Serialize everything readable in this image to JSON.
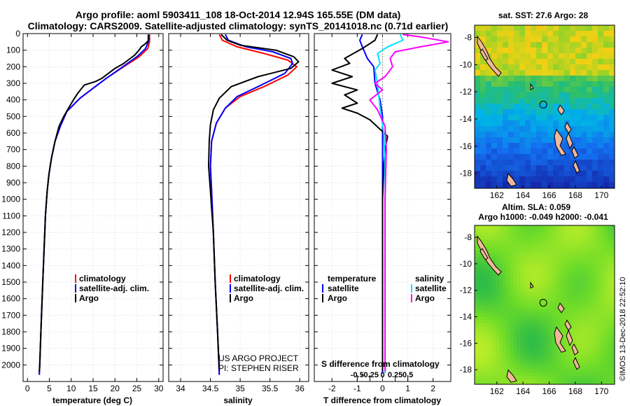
{
  "title": {
    "line1": "Argo profile: aoml 5903411_108 18-Oct-2014 12.94S 165.55E (DM data)",
    "line2": "Climatology: CARS2009. Satellite-adjusted climatology: synTS_20141018.nc (0.71d earlier)"
  },
  "colors": {
    "climatology": "#ff0000",
    "satellite": "#0000ff",
    "argo": "#000000",
    "sal_argo": "#ff00ff",
    "sal_satellite": "#00e5ff"
  },
  "chart_data": [
    {
      "type": "line",
      "id": "temperature",
      "xlabel": "temperature (deg C)",
      "ylabel": "",
      "xlim": [
        -1,
        31
      ],
      "ylim": [
        2100,
        0
      ],
      "xticks": [
        0,
        5,
        10,
        15,
        20,
        25,
        30
      ],
      "xticklabels": [
        "0",
        "5",
        "10",
        "15",
        "20",
        "25",
        "30"
      ],
      "yticks": [
        0,
        100,
        200,
        300,
        400,
        500,
        600,
        700,
        800,
        900,
        1000,
        1100,
        1200,
        1300,
        1400,
        1500,
        1600,
        1700,
        1800,
        1900,
        2000
      ],
      "legend": [
        "climatology",
        "satellite-adj. clim.",
        "Argo"
      ],
      "series": [
        {
          "name": "climatology",
          "color": "#ff0000",
          "points": [
            [
              27.9,
              5
            ],
            [
              27.9,
              50
            ],
            [
              27.5,
              90
            ],
            [
              25.5,
              140
            ],
            [
              22,
              200
            ],
            [
              18,
              270
            ],
            [
              15,
              330
            ],
            [
              12,
              390
            ],
            [
              9,
              470
            ],
            [
              7.5,
              560
            ],
            [
              6.3,
              650
            ],
            [
              5.5,
              750
            ],
            [
              4.9,
              850
            ],
            [
              4.5,
              950
            ],
            [
              4.1,
              1100
            ],
            [
              3.8,
              1300
            ],
            [
              3.5,
              1500
            ],
            [
              3.2,
              1700
            ],
            [
              3.0,
              1850
            ],
            [
              2.8,
              2000
            ],
            [
              2.7,
              2060
            ]
          ]
        },
        {
          "name": "satellite-adj. clim.",
          "color": "#0000ff",
          "points": [
            [
              27.6,
              5
            ],
            [
              27.6,
              50
            ],
            [
              27.0,
              90
            ],
            [
              25.0,
              140
            ],
            [
              21.8,
              200
            ],
            [
              18,
              270
            ],
            [
              15,
              330
            ],
            [
              12,
              390
            ],
            [
              9,
              470
            ],
            [
              7.5,
              560
            ],
            [
              6.3,
              650
            ],
            [
              5.5,
              750
            ],
            [
              4.9,
              850
            ],
            [
              4.5,
              950
            ],
            [
              4.1,
              1100
            ],
            [
              3.8,
              1300
            ],
            [
              3.5,
              1500
            ],
            [
              3.2,
              1700
            ],
            [
              3.0,
              1850
            ],
            [
              2.8,
              2000
            ],
            [
              2.7,
              2060
            ]
          ]
        },
        {
          "name": "Argo",
          "color": "#000000",
          "points": [
            [
              27.7,
              5
            ],
            [
              27.7,
              40
            ],
            [
              27.0,
              60
            ],
            [
              26.0,
              80
            ],
            [
              25.5,
              100
            ],
            [
              24.5,
              130
            ],
            [
              23.5,
              150
            ],
            [
              22,
              180
            ],
            [
              20,
              210
            ],
            [
              18.5,
              240
            ],
            [
              17,
              270
            ],
            [
              15.5,
              290
            ],
            [
              13,
              310
            ],
            [
              11.5,
              360
            ],
            [
              10.5,
              400
            ],
            [
              9.6,
              440
            ],
            [
              8.3,
              500
            ],
            [
              7.2,
              560
            ],
            [
              6.3,
              650
            ],
            [
              5.5,
              750
            ],
            [
              4.9,
              850
            ],
            [
              4.5,
              950
            ],
            [
              4.1,
              1100
            ],
            [
              3.8,
              1300
            ],
            [
              3.5,
              1500
            ],
            [
              3.2,
              1700
            ],
            [
              3.0,
              1850
            ],
            [
              2.8,
              2000
            ],
            [
              2.7,
              2040
            ]
          ]
        }
      ]
    },
    {
      "type": "line",
      "id": "salinity",
      "xlabel": "salinity",
      "xlim": [
        33.8,
        36.15
      ],
      "ylim": [
        2100,
        0
      ],
      "xticks": [
        34,
        34.5,
        35,
        35.5,
        36
      ],
      "xticklabels": [
        "34",
        "34.5",
        "35",
        "35.5",
        "36"
      ],
      "legend": [
        "climatology",
        "satellite-adj. clim.",
        "Argo"
      ],
      "annotations": [
        "US ARGO PROJECT",
        "PI: STEPHEN RISER"
      ],
      "series": [
        {
          "name": "climatology",
          "color": "#ff0000",
          "points": [
            [
              34.65,
              5
            ],
            [
              34.7,
              40
            ],
            [
              34.95,
              80
            ],
            [
              35.4,
              120
            ],
            [
              35.8,
              160
            ],
            [
              35.95,
              200
            ],
            [
              35.8,
              250
            ],
            [
              35.4,
              320
            ],
            [
              35.0,
              380
            ],
            [
              34.75,
              450
            ],
            [
              34.6,
              540
            ],
            [
              34.52,
              650
            ],
            [
              34.5,
              800
            ],
            [
              34.52,
              950
            ],
            [
              34.55,
              1200
            ],
            [
              34.58,
              1500
            ],
            [
              34.62,
              1800
            ],
            [
              34.65,
              2060
            ]
          ]
        },
        {
          "name": "satellite-adj. clim.",
          "color": "#0000ff",
          "points": [
            [
              34.75,
              5
            ],
            [
              34.8,
              40
            ],
            [
              35.1,
              80
            ],
            [
              35.55,
              110
            ],
            [
              35.85,
              150
            ],
            [
              35.88,
              180
            ],
            [
              35.75,
              240
            ],
            [
              35.3,
              320
            ],
            [
              34.95,
              380
            ],
            [
              34.75,
              450
            ],
            [
              34.6,
              540
            ],
            [
              34.52,
              650
            ],
            [
              34.5,
              800
            ],
            [
              34.52,
              950
            ],
            [
              34.55,
              1200
            ],
            [
              34.58,
              1500
            ],
            [
              34.62,
              1800
            ],
            [
              34.65,
              2060
            ]
          ]
        },
        {
          "name": "Argo",
          "color": "#000000",
          "points": [
            [
              34.68,
              5
            ],
            [
              34.78,
              40
            ],
            [
              35.0,
              70
            ],
            [
              35.6,
              100
            ],
            [
              35.9,
              140
            ],
            [
              35.98,
              170
            ],
            [
              35.85,
              210
            ],
            [
              35.3,
              260
            ],
            [
              34.85,
              320
            ],
            [
              34.65,
              390
            ],
            [
              34.55,
              460
            ],
            [
              34.5,
              550
            ],
            [
              34.48,
              650
            ],
            [
              34.47,
              800
            ],
            [
              34.5,
              950
            ],
            [
              34.55,
              1200
            ],
            [
              34.58,
              1500
            ],
            [
              34.62,
              1800
            ],
            [
              34.65,
              2030
            ]
          ]
        }
      ]
    },
    {
      "type": "line",
      "id": "differences",
      "xlabel": "T difference from climatology",
      "xlabel_top": "S difference from climatology",
      "xlim": [
        -2.7,
        2.7
      ],
      "ylim": [
        2100,
        0
      ],
      "xticks": [
        -2,
        -1,
        0,
        1,
        2
      ],
      "xticklabels": [
        "-2",
        "-1",
        "0",
        "1",
        "2"
      ],
      "sticks": [
        -1,
        -0.5,
        0,
        0.5,
        1
      ],
      "sticklabels": [
        "-0.5",
        "-0.25",
        "0",
        "0.25",
        "0.5"
      ],
      "legend_left_title": "temperature",
      "legend_right_title": "salinity",
      "legend": [
        "satellite",
        "Argo"
      ],
      "series": [
        {
          "name": "T satellite",
          "color": "#0000ff",
          "points": [
            [
              -0.8,
              5
            ],
            [
              -0.9,
              40
            ],
            [
              -0.8,
              80
            ],
            [
              -0.6,
              150
            ],
            [
              -0.35,
              200
            ],
            [
              -0.3,
              300
            ],
            [
              -0.1,
              400
            ],
            [
              0,
              500
            ],
            [
              0,
              700
            ],
            [
              0,
              2050
            ]
          ]
        },
        {
          "name": "T Argo",
          "color": "#000000",
          "points": [
            [
              -0.2,
              5
            ],
            [
              -0.3,
              40
            ],
            [
              -0.8,
              90
            ],
            [
              -1.5,
              150
            ],
            [
              -1.3,
              180
            ],
            [
              -2.0,
              220
            ],
            [
              -1.2,
              260
            ],
            [
              -2.0,
              300
            ],
            [
              -1.0,
              340
            ],
            [
              -1.5,
              370
            ],
            [
              -1.0,
              420
            ],
            [
              -1.6,
              450
            ],
            [
              -1.0,
              480
            ],
            [
              -0.5,
              520
            ],
            [
              0.2,
              620
            ],
            [
              0.1,
              700
            ],
            [
              0.05,
              800
            ],
            [
              0,
              1000
            ],
            [
              0,
              2040
            ]
          ]
        },
        {
          "name": "S satellite",
          "color": "#00e5ff",
          "points": [
            [
              0.7,
              5
            ],
            [
              0.8,
              40
            ],
            [
              0.2,
              80
            ],
            [
              -0.2,
              120
            ],
            [
              -0.1,
              180
            ],
            [
              -0.3,
              220
            ],
            [
              -0.2,
              300
            ],
            [
              -0.1,
              450
            ],
            [
              0.05,
              600
            ],
            [
              0.1,
              800
            ],
            [
              0.1,
              2050
            ]
          ]
        },
        {
          "name": "S Argo",
          "color": "#ff00ff",
          "points": [
            [
              0.8,
              5
            ],
            [
              1.5,
              20
            ],
            [
              2.6,
              50
            ],
            [
              1.5,
              80
            ],
            [
              0.5,
              110
            ],
            [
              0.3,
              150
            ],
            [
              0.4,
              200
            ],
            [
              0.1,
              260
            ],
            [
              -0.3,
              300
            ],
            [
              0.0,
              340
            ],
            [
              -0.5,
              400
            ],
            [
              -0.2,
              460
            ],
            [
              0.1,
              560
            ],
            [
              0.15,
              700
            ],
            [
              0.1,
              1000
            ],
            [
              0.1,
              1500
            ],
            [
              0.1,
              2040
            ]
          ]
        }
      ]
    },
    {
      "type": "heatmap",
      "id": "sst-map",
      "title": "sat. SST: 27.6 Argo: 28",
      "xticklabels": [
        "162",
        "164",
        "166",
        "168",
        "170"
      ],
      "yticklabels": [
        "-8",
        "-10",
        "-12",
        "-14",
        "-16",
        "-18"
      ],
      "xlim": [
        160.3,
        171
      ],
      "ylim": [
        -19.1,
        -7.1
      ],
      "marker": [
        165.55,
        -12.94
      ]
    },
    {
      "type": "heatmap",
      "id": "sla-map",
      "title": "Altim. SLA: 0.059",
      "subtitle": "Argo h1000: -0.049 h2000: -0.041",
      "xticklabels": [
        "162",
        "164",
        "166",
        "168",
        "170"
      ],
      "yticklabels": [
        "-8",
        "-10",
        "-12",
        "-14",
        "-16",
        "-18"
      ],
      "xlim": [
        160.3,
        171
      ],
      "ylim": [
        -19.1,
        -7.1
      ],
      "marker": [
        165.55,
        -12.94
      ]
    }
  ],
  "side_text": "©IMOS 13-Dec-2018 22:52:10"
}
